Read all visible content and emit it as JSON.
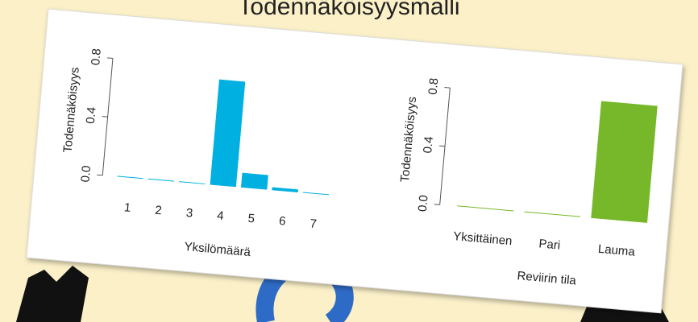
{
  "title": "Todennäköisyysmalli",
  "chart_data": [
    {
      "type": "bar",
      "categories": [
        "1",
        "2",
        "3",
        "4",
        "5",
        "6",
        "7"
      ],
      "values": [
        0.0,
        0.0,
        0.0,
        0.72,
        0.1,
        0.02,
        0.0
      ],
      "color": "#00b0e0",
      "ylabel": "Todennäköisyys",
      "xlabel": "Yksilömäärä",
      "ylim": [
        0,
        0.85
      ],
      "yticks": [
        {
          "value": 0,
          "label": "0.0"
        },
        0.4,
        0.8
      ]
    },
    {
      "type": "bar",
      "categories": [
        "Yksittäinen",
        "Pari",
        "Lauma"
      ],
      "values": [
        0.0,
        0.0,
        0.8
      ],
      "color": "#76b82a",
      "ylabel": "Todennäköisyys",
      "xlabel": "Reviirin tila",
      "ylim": [
        0,
        0.85
      ],
      "yticks": [
        {
          "value": 0,
          "label": "0.0"
        },
        0.4,
        0.8
      ]
    }
  ]
}
